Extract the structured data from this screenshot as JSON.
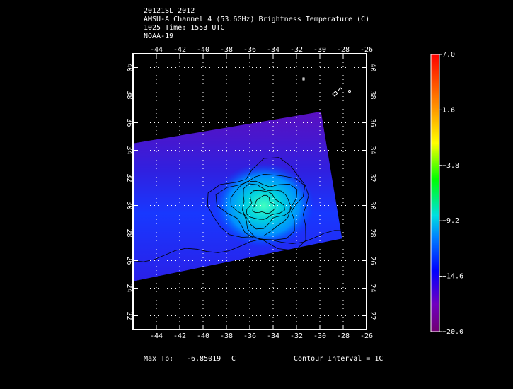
{
  "header": {
    "line1": "20121SL 2012",
    "line2": "AMSU-A Channel 4 (53.6GHz) Brightness Temperature (C)",
    "line3": "1025 Time: 1553 UTC",
    "line4": "NOAA-19"
  },
  "footer": {
    "max_label": "Max Tb:",
    "max_value": "-6.85019",
    "max_unit": "C",
    "contour": "Contour Interval = 1C"
  },
  "colors": {
    "background": "#000000",
    "frame": "#ffffff",
    "grid": "#ffffff"
  },
  "chart_data": {
    "type": "heatmap",
    "title": "AMSU-A Channel 4 (53.6GHz) Brightness Temperature (C)",
    "xlim": [
      -46,
      -26
    ],
    "ylim": [
      21,
      41
    ],
    "x_ticks": [
      -44,
      -42,
      -40,
      -38,
      -36,
      -34,
      -32,
      -30,
      -28,
      -26
    ],
    "y_ticks": [
      22,
      24,
      26,
      28,
      30,
      32,
      34,
      36,
      38,
      40
    ],
    "x_tick_labels": [
      "-44",
      "-42",
      "-40",
      "-38",
      "-36",
      "-34",
      "-32",
      "-30",
      "-28",
      "-26"
    ],
    "y_tick_labels": [
      "22",
      "24",
      "26",
      "28",
      "30",
      "32",
      "34",
      "36",
      "38",
      "40"
    ],
    "grid": true,
    "contour_interval_c": 1,
    "max_tb_c": -6.85019,
    "swath_corners_lonlat": [
      [
        -46,
        34.5
      ],
      [
        -29.9,
        36.8
      ],
      [
        -28.1,
        27.6
      ],
      [
        -46,
        24.5
      ]
    ],
    "warm_core_center_lonlat": [
      -34.8,
      30.0
    ],
    "colorbar": {
      "min": -20.0,
      "max": 7.0,
      "tick_values": [
        7.0,
        1.6,
        -3.8,
        -9.2,
        -14.6,
        -20.0
      ],
      "tick_labels": [
        "7.0",
        "1.6",
        "−3.8",
        "−9.2",
        "−14.6",
        "−20.0"
      ],
      "colors": [
        "#ff0000",
        "#ff9a00",
        "#ffff00",
        "#00ff00",
        "#00e0e0",
        "#0060ff",
        "#0000ff",
        "#7000c0",
        "#700070"
      ]
    }
  }
}
